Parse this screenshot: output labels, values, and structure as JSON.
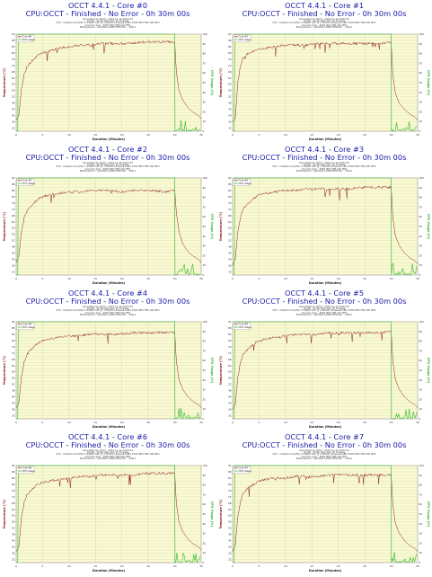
{
  "chart_data": [
    {
      "type": "line",
      "title": "OCCT 4.4.1 - Core #0",
      "subtitle": "CPU:OCCT - Finished - No Error - 0h 30m 00s",
      "xlabel": "Duration (Minutes)",
      "ylabel": "Temperature (°C)",
      "y2label": "CPU Usage (%)",
      "xlim": [
        0,
        35
      ],
      "ylim": [
        30,
        92
      ],
      "y2lim": [
        0,
        100
      ],
      "grid": true,
      "legend": "top-left",
      "series": [
        {
          "name": "Core #0",
          "axis": "left",
          "color": "#8b1a1a",
          "x": [
            0,
            0.5,
            1,
            1.5,
            2,
            3,
            4,
            5,
            6,
            8,
            10,
            12,
            14,
            16,
            18,
            20,
            22,
            24,
            26,
            28,
            30,
            30.3,
            30.8,
            31.5,
            32.5,
            33.5,
            34.5,
            35
          ],
          "y": [
            37,
            40,
            57,
            66,
            71,
            75,
            78,
            80,
            81,
            83,
            84,
            85,
            85,
            86,
            86,
            86,
            86,
            87,
            87,
            87,
            87,
            68,
            56,
            50,
            45,
            42,
            40,
            38
          ]
        },
        {
          "name": "CPU Usage",
          "axis": "right",
          "color": "#2db82d",
          "x": [
            0,
            0.3,
            0.4,
            30,
            30.05,
            35
          ],
          "y": [
            0,
            0,
            100,
            100,
            0,
            0
          ]
        }
      ]
    },
    {
      "type": "line",
      "title": "OCCT 4.4.1 - Core #1",
      "subtitle": "CPU:OCCT - Finished - No Error - 0h 30m 00s",
      "xlabel": "Duration (Minutes)",
      "ylabel": "Temperature (°C)",
      "y2label": "CPU Usage (%)",
      "xlim": [
        0,
        35
      ],
      "ylim": [
        30,
        92
      ],
      "y2lim": [
        0,
        100
      ],
      "grid": true,
      "legend": "top-left",
      "series": [
        {
          "name": "Core #1",
          "axis": "left",
          "color": "#8b1a1a",
          "x": [
            0,
            0.5,
            1,
            1.5,
            2,
            3,
            4,
            5,
            6,
            8,
            10,
            12,
            14,
            16,
            18,
            20,
            22,
            24,
            26,
            28,
            30,
            30.3,
            30.8,
            31.5,
            32.5,
            33.5,
            34.5,
            35
          ],
          "y": [
            36,
            38,
            62,
            72,
            77,
            80,
            81,
            82,
            83,
            84,
            85,
            85,
            85,
            86,
            86,
            86,
            86,
            86,
            86,
            86,
            87,
            66,
            54,
            48,
            44,
            41,
            39,
            37
          ]
        },
        {
          "name": "CPU Usage",
          "axis": "right",
          "color": "#2db82d",
          "x": [
            0,
            0.3,
            0.4,
            30,
            30.05,
            35
          ],
          "y": [
            0,
            0,
            100,
            100,
            0,
            0
          ]
        }
      ]
    },
    {
      "type": "line",
      "title": "OCCT 4.4.1 - Core #2",
      "subtitle": "CPU:OCCT - Finished - No Error - 0h 30m 00s",
      "xlabel": "Duration (Minutes)",
      "ylabel": "Temperature (°C)",
      "y2label": "CPU Usage (%)",
      "xlim": [
        0,
        35
      ],
      "ylim": [
        30,
        92
      ],
      "y2lim": [
        0,
        100
      ],
      "grid": true,
      "legend": "top-left",
      "series": [
        {
          "name": "Core #2",
          "axis": "left",
          "color": "#8b1a1a",
          "x": [
            0,
            0.5,
            1,
            1.5,
            2,
            3,
            4,
            5,
            6,
            8,
            10,
            12,
            14,
            16,
            18,
            20,
            22,
            24,
            26,
            28,
            30,
            30.3,
            30.8,
            31.5,
            32.5,
            33.5,
            34.5,
            35
          ],
          "y": [
            38,
            42,
            58,
            66,
            71,
            75,
            78,
            80,
            81,
            82,
            83,
            83,
            84,
            84,
            84,
            83,
            84,
            84,
            84,
            83,
            84,
            70,
            58,
            50,
            45,
            42,
            40,
            38
          ]
        },
        {
          "name": "CPU Usage",
          "axis": "right",
          "color": "#2db82d",
          "x": [
            0,
            0.3,
            0.4,
            30,
            30.05,
            35
          ],
          "y": [
            0,
            0,
            100,
            100,
            0,
            0
          ]
        }
      ]
    },
    {
      "type": "line",
      "title": "OCCT 4.4.1 - Core #3",
      "subtitle": "CPU:OCCT - Finished - No Error - 0h 30m 00s",
      "xlabel": "Duration (Minutes)",
      "ylabel": "Temperature (°C)",
      "y2label": "CPU Usage (%)",
      "xlim": [
        0,
        35
      ],
      "ylim": [
        30,
        92
      ],
      "y2lim": [
        0,
        100
      ],
      "grid": true,
      "legend": "top-left",
      "series": [
        {
          "name": "Core #3",
          "axis": "left",
          "color": "#8b1a1a",
          "x": [
            0,
            0.5,
            1,
            1.5,
            2,
            3,
            4,
            5,
            6,
            8,
            10,
            12,
            14,
            16,
            18,
            20,
            22,
            24,
            26,
            28,
            30,
            30.3,
            30.8,
            31.5,
            32.5,
            33.5,
            34.5,
            35
          ],
          "y": [
            36,
            40,
            58,
            67,
            72,
            76,
            79,
            81,
            82,
            83,
            84,
            84,
            85,
            85,
            85,
            85,
            85,
            86,
            86,
            86,
            86,
            67,
            55,
            49,
            44,
            41,
            39,
            37
          ]
        },
        {
          "name": "CPU Usage",
          "axis": "right",
          "color": "#2db82d",
          "x": [
            0,
            0.3,
            0.4,
            30,
            30.05,
            35
          ],
          "y": [
            0,
            0,
            100,
            100,
            0,
            0
          ]
        }
      ]
    },
    {
      "type": "line",
      "title": "OCCT 4.4.1 - Core #4",
      "subtitle": "CPU:OCCT - Finished - No Error - 0h 30m 00s",
      "xlabel": "Duration (Minutes)",
      "ylabel": "Temperature (°C)",
      "y2label": "CPU Usage (%)",
      "xlim": [
        0,
        35
      ],
      "ylim": [
        30,
        92
      ],
      "y2lim": [
        0,
        100
      ],
      "grid": true,
      "legend": "top-left",
      "series": [
        {
          "name": "Core #4",
          "axis": "left",
          "color": "#8b1a1a",
          "x": [
            0,
            0.5,
            1,
            1.5,
            2,
            3,
            4,
            5,
            6,
            8,
            10,
            12,
            14,
            16,
            18,
            20,
            22,
            24,
            26,
            28,
            30,
            30.3,
            30.8,
            31.5,
            32.5,
            33.5,
            34.5,
            35
          ],
          "y": [
            37,
            40,
            57,
            66,
            71,
            75,
            78,
            80,
            81,
            82,
            83,
            83,
            84,
            84,
            84,
            84,
            85,
            85,
            85,
            85,
            85,
            67,
            55,
            49,
            44,
            41,
            39,
            37
          ]
        },
        {
          "name": "CPU Usage",
          "axis": "right",
          "color": "#2db82d",
          "x": [
            0,
            0.3,
            0.4,
            30,
            30.05,
            35
          ],
          "y": [
            0,
            0,
            100,
            100,
            0,
            0
          ]
        }
      ]
    },
    {
      "type": "line",
      "title": "OCCT 4.4.1 - Core #5",
      "subtitle": "CPU:OCCT - Finished - No Error - 0h 30m 00s",
      "xlabel": "Duration (Minutes)",
      "ylabel": "Temperature (°C)",
      "y2label": "CPU Usage (%)",
      "xlim": [
        0,
        35
      ],
      "ylim": [
        30,
        92
      ],
      "y2lim": [
        0,
        100
      ],
      "grid": true,
      "legend": "top-left",
      "series": [
        {
          "name": "Core #5",
          "axis": "left",
          "color": "#8b1a1a",
          "x": [
            0,
            0.5,
            1,
            1.5,
            2,
            3,
            4,
            5,
            6,
            8,
            10,
            12,
            14,
            16,
            18,
            20,
            22,
            24,
            26,
            28,
            30,
            30.3,
            30.8,
            31.5,
            32.5,
            33.5,
            34.5,
            35
          ],
          "y": [
            36,
            39,
            57,
            66,
            71,
            75,
            78,
            80,
            81,
            82,
            83,
            84,
            84,
            84,
            85,
            85,
            85,
            85,
            85,
            85,
            86,
            67,
            55,
            49,
            44,
            41,
            39,
            37
          ]
        },
        {
          "name": "CPU Usage",
          "axis": "right",
          "color": "#2db82d",
          "x": [
            0,
            0.3,
            0.4,
            30,
            30.05,
            35
          ],
          "y": [
            0,
            0,
            100,
            100,
            0,
            0
          ]
        }
      ]
    },
    {
      "type": "line",
      "title": "OCCT 4.4.1 - Core #6",
      "subtitle": "CPU:OCCT - Finished - No Error - 0h 30m 00s",
      "xlabel": "Duration (Minutes)",
      "ylabel": "Temperature (°C)",
      "y2label": "CPU Usage (%)",
      "xlim": [
        0,
        35
      ],
      "ylim": [
        30,
        92
      ],
      "y2lim": [
        0,
        100
      ],
      "grid": true,
      "legend": "top-left",
      "series": [
        {
          "name": "Core #6",
          "axis": "left",
          "color": "#8b1a1a",
          "x": [
            0,
            0.5,
            1,
            1.5,
            2,
            3,
            4,
            5,
            6,
            8,
            10,
            12,
            14,
            16,
            18,
            20,
            22,
            24,
            26,
            28,
            30,
            30.3,
            30.8,
            31.5,
            32.5,
            33.5,
            34.5,
            35
          ],
          "y": [
            37,
            40,
            59,
            68,
            73,
            77,
            80,
            81,
            82,
            83,
            84,
            85,
            85,
            86,
            86,
            86,
            86,
            87,
            87,
            87,
            87,
            68,
            56,
            50,
            45,
            42,
            40,
            38
          ]
        },
        {
          "name": "CPU Usage",
          "axis": "right",
          "color": "#2db82d",
          "x": [
            0,
            0.3,
            0.4,
            30,
            30.05,
            35
          ],
          "y": [
            0,
            0,
            100,
            100,
            0,
            0
          ]
        }
      ]
    },
    {
      "type": "line",
      "title": "OCCT 4.4.1 - Core #7",
      "subtitle": "CPU:OCCT - Finished - No Error - 0h 30m 00s",
      "xlabel": "Duration (Minutes)",
      "ylabel": "Temperature (°C)",
      "y2label": "CPU Usage (%)",
      "xlim": [
        0,
        35
      ],
      "ylim": [
        30,
        92
      ],
      "y2lim": [
        0,
        100
      ],
      "grid": true,
      "legend": "top-left",
      "series": [
        {
          "name": "Core #7",
          "axis": "left",
          "color": "#8b1a1a",
          "x": [
            0,
            0.5,
            1,
            1.5,
            2,
            3,
            4,
            5,
            6,
            8,
            10,
            12,
            14,
            16,
            18,
            20,
            22,
            24,
            26,
            28,
            30,
            30.3,
            30.8,
            31.5,
            32.5,
            33.5,
            34.5,
            35
          ],
          "y": [
            37,
            41,
            60,
            69,
            74,
            78,
            80,
            82,
            83,
            84,
            84,
            85,
            85,
            85,
            86,
            86,
            86,
            86,
            86,
            86,
            86,
            67,
            55,
            49,
            44,
            41,
            39,
            37
          ]
        },
        {
          "name": "CPU Usage",
          "axis": "right",
          "color": "#2db82d",
          "x": [
            0,
            0.3,
            0.4,
            30,
            30.05,
            35
          ],
          "y": [
            0,
            0,
            100,
            100,
            0,
            0
          ]
        }
      ]
    }
  ],
  "meta_lines": [
    "Generated by OCCT - 2014-11-14 20:04:22",
    "Config : Small Data Set, 16 Threads",
    "CPU : Intel(R) Core(TM) i7-5960X CPU @ 3.00GHz (Haswell-E/EP) 3500 MHz FSB 100 MHz",
    "Current clock : 3500 MHz FSB 100 MHz",
    "Motherboard : ASUSTeK COMPUTER INC. - X99-A"
  ],
  "colors": {
    "title": "#1a1aa6",
    "plot_bg": "#fafad2",
    "grid": "#c8c8a0",
    "temp_line": "#8b1a1a",
    "usage_line": "#2db82d",
    "temp_axis_label": "#8b1a1a",
    "usage_axis_label": "#2db82d"
  }
}
